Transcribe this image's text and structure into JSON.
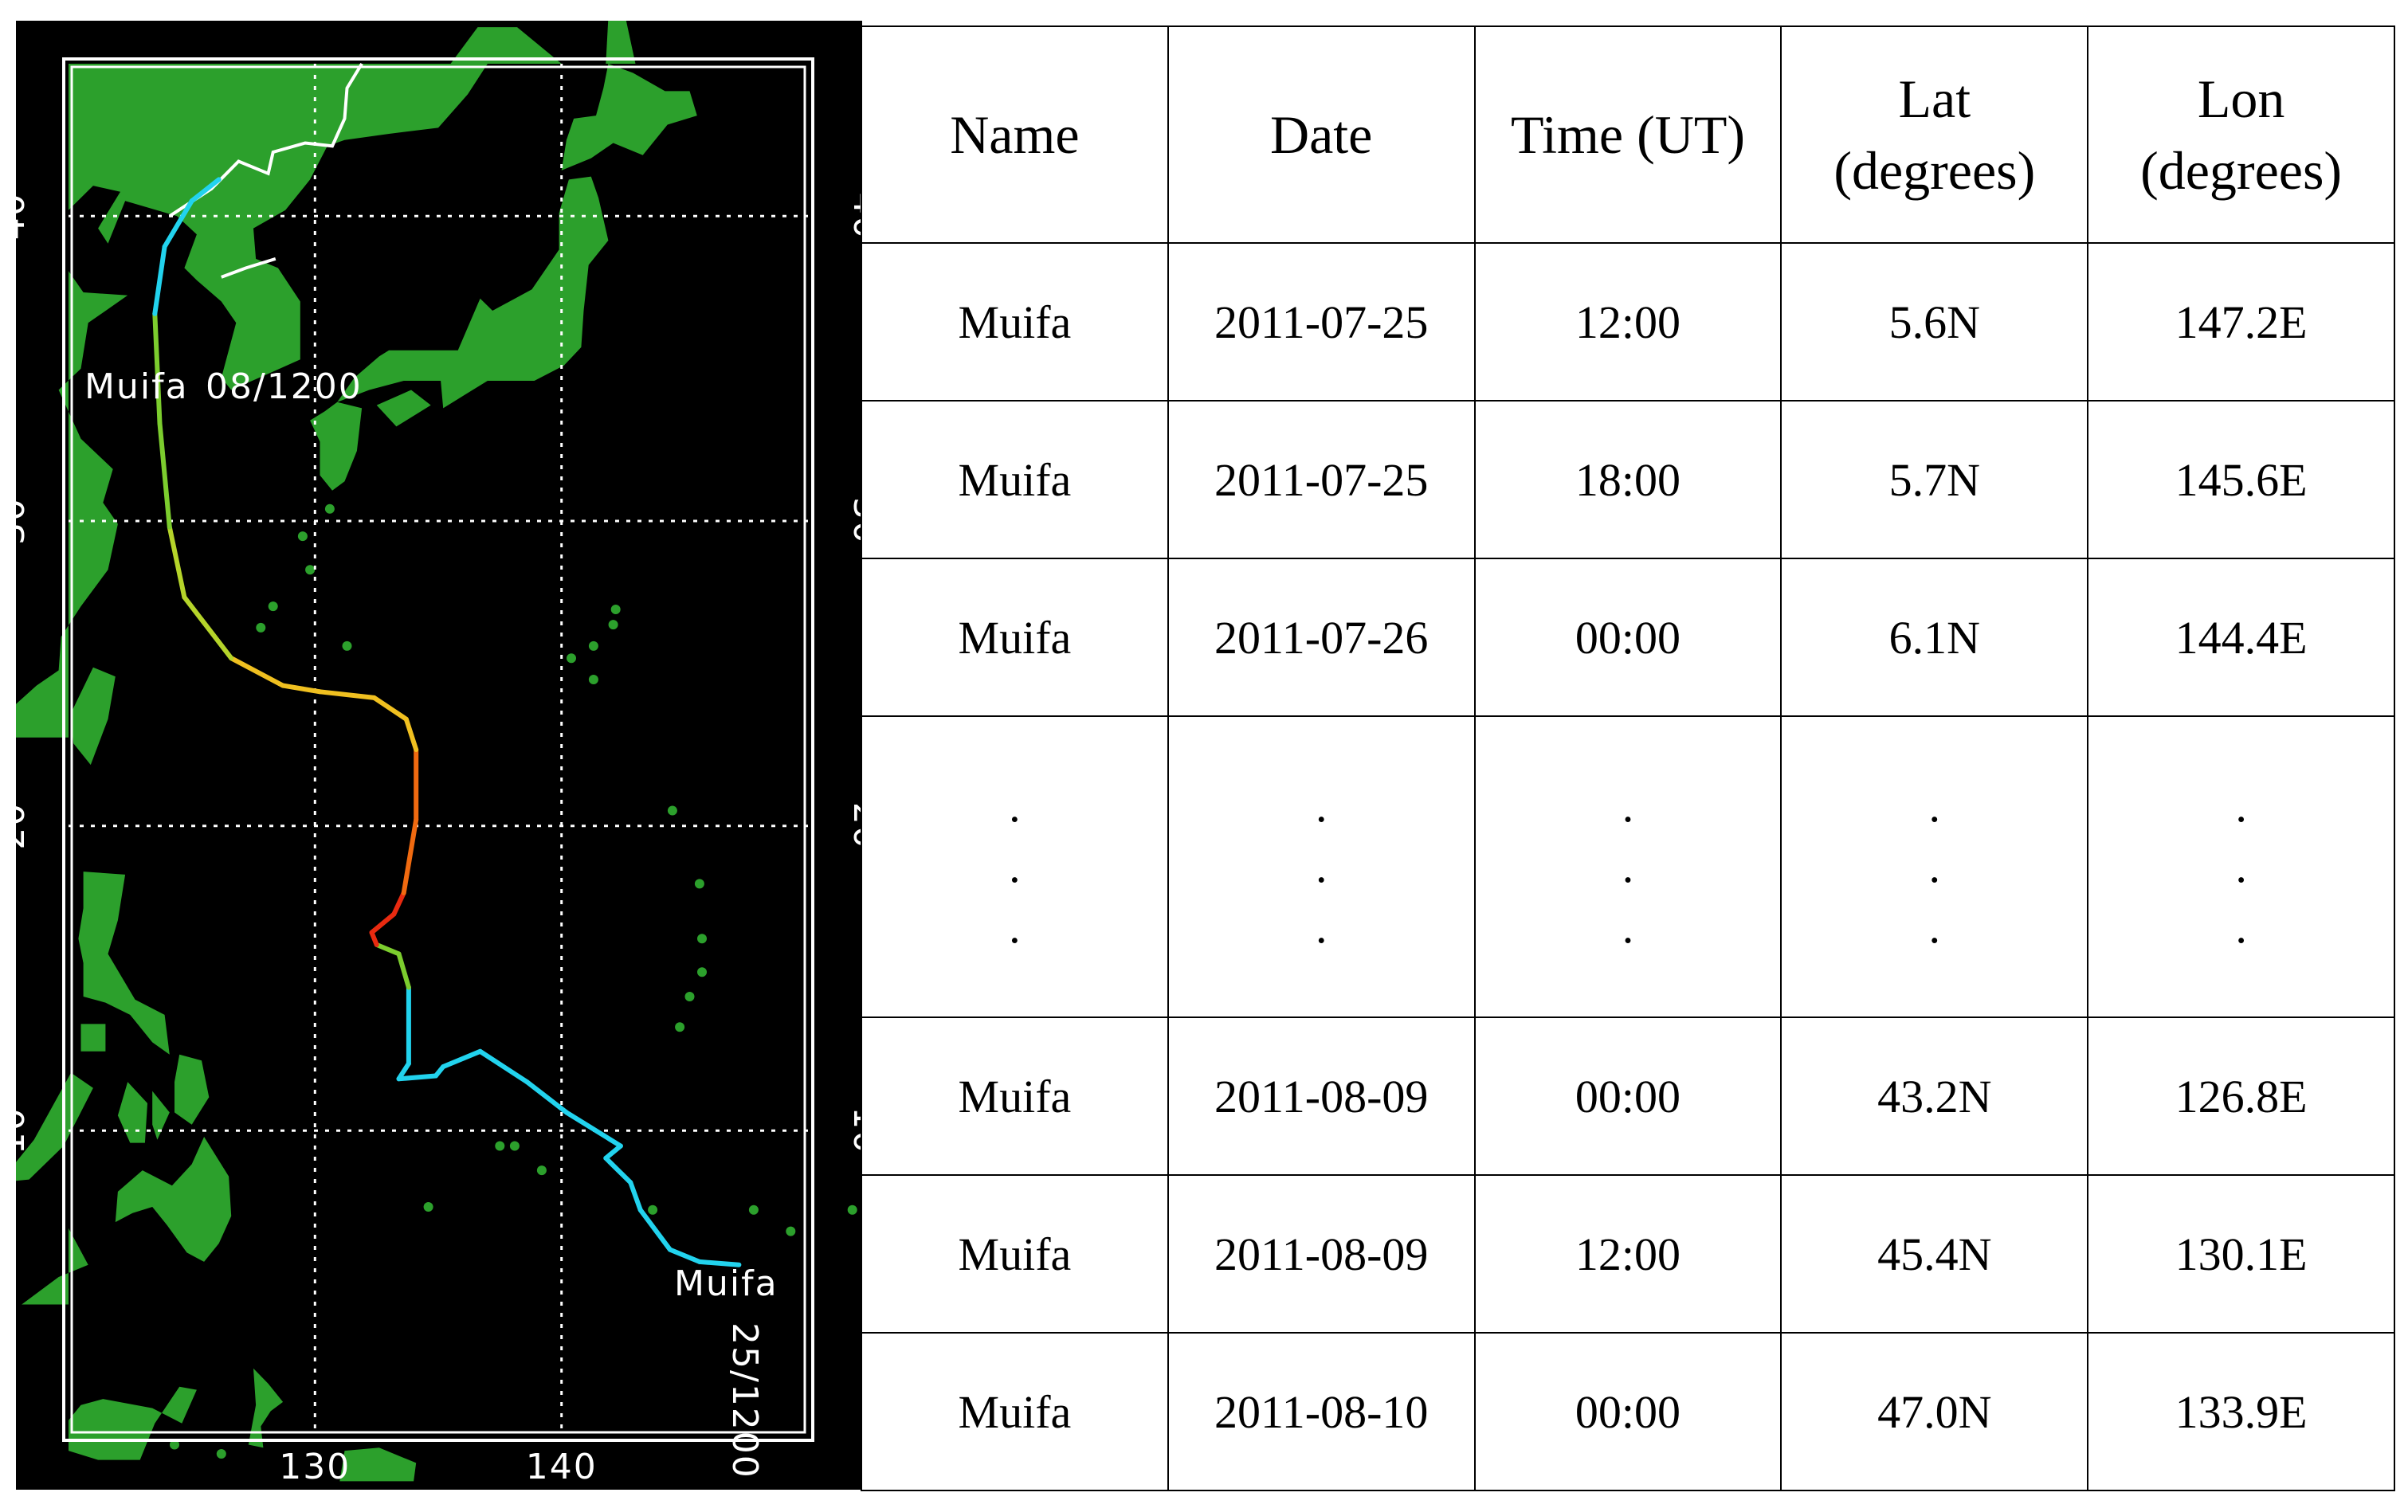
{
  "map": {
    "storm_label": "Muifa",
    "track_start_label": "Muifa",
    "track_start_time": "25/1200",
    "track_end_label": "Muifa",
    "track_end_time": "08/1200",
    "lat_ticks": [
      "10",
      "20",
      "30",
      "40"
    ],
    "lon_ticks": [
      "130",
      "140"
    ],
    "lon_range": [
      120,
      150
    ],
    "lat_range": [
      0,
      45
    ],
    "colors": {
      "ocean": "#000000",
      "land": "#2ca02c",
      "border": "#ffffff",
      "grid": "#ffffff",
      "track_weak": "#22d3ee",
      "track_mid": "#7ccd2e",
      "track_strong": "#f0c020",
      "track_peak": "#e82a10"
    },
    "track": [
      {
        "lon": 147.2,
        "lat": 5.6
      },
      {
        "lon": 145.6,
        "lat": 5.7
      },
      {
        "lon": 144.4,
        "lat": 6.1
      },
      {
        "lon": 143.2,
        "lat": 7.4
      },
      {
        "lon": 142.8,
        "lat": 8.3
      },
      {
        "lon": 141.8,
        "lat": 9.1
      },
      {
        "lon": 142.4,
        "lat": 9.5
      },
      {
        "lon": 140.2,
        "lat": 10.6
      },
      {
        "lon": 138.6,
        "lat": 11.6
      },
      {
        "lon": 136.7,
        "lat": 12.6
      },
      {
        "lon": 135.2,
        "lat": 12.1
      },
      {
        "lon": 134.9,
        "lat": 11.8
      },
      {
        "lon": 133.4,
        "lat": 11.7
      },
      {
        "lon": 133.8,
        "lat": 12.2
      },
      {
        "lon": 133.8,
        "lat": 14.7
      },
      {
        "lon": 133.4,
        "lat": 15.8
      },
      {
        "lon": 132.5,
        "lat": 16.1
      },
      {
        "lon": 132.3,
        "lat": 16.5
      },
      {
        "lon": 133.2,
        "lat": 17.1
      },
      {
        "lon": 133.6,
        "lat": 17.8
      },
      {
        "lon": 134.1,
        "lat": 20.2
      },
      {
        "lon": 134.1,
        "lat": 22.5
      },
      {
        "lon": 133.7,
        "lat": 23.5
      },
      {
        "lon": 132.4,
        "lat": 24.2
      },
      {
        "lon": 130.2,
        "lat": 24.4
      },
      {
        "lon": 128.7,
        "lat": 24.6
      },
      {
        "lon": 126.6,
        "lat": 25.5
      },
      {
        "lon": 124.7,
        "lat": 27.5
      },
      {
        "lon": 124.1,
        "lat": 29.8
      },
      {
        "lon": 123.7,
        "lat": 33.2
      },
      {
        "lon": 123.5,
        "lat": 36.8
      },
      {
        "lon": 123.9,
        "lat": 39.0
      },
      {
        "lon": 125.0,
        "lat": 40.5
      },
      {
        "lon": 126.1,
        "lat": 41.2
      }
    ]
  },
  "table": {
    "headers": [
      "Name",
      "Date",
      "Time (UT)",
      "Lat (degrees)",
      "Lon (degrees)"
    ],
    "header_lines": [
      [
        "Name"
      ],
      [
        "Date"
      ],
      [
        "Time (UT)"
      ],
      [
        "Lat",
        "(degrees)"
      ],
      [
        "Lon",
        "(degrees)"
      ]
    ],
    "rows": [
      [
        "Muifa",
        "2011-07-25",
        "12:00",
        "5.6N",
        "147.2E"
      ],
      [
        "Muifa",
        "2011-07-25",
        "18:00",
        "5.7N",
        "145.6E"
      ],
      [
        "Muifa",
        "2011-07-26",
        "00:00",
        "6.1N",
        "144.4E"
      ],
      [
        ".",
        ".",
        ".",
        ".",
        "."
      ],
      [
        "Muifa",
        "2011-08-09",
        "00:00",
        "43.2N",
        "126.8E"
      ],
      [
        "Muifa",
        "2011-08-09",
        "12:00",
        "45.4N",
        "130.1E"
      ],
      [
        "Muifa",
        "2011-08-10",
        "00:00",
        "47.0N",
        "133.9E"
      ]
    ]
  }
}
